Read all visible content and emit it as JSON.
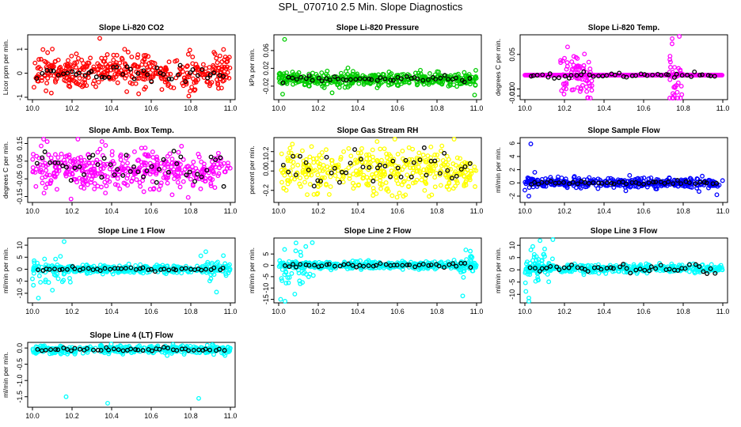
{
  "figure": {
    "title": "SPL_070710  2.5 Min. Slope Diagnostics"
  },
  "chart_data": [
    {
      "type": "scatter",
      "title": "Slope Li-820 CO2",
      "ylabel": "Licor ppm per min.",
      "xlim": [
        10.0,
        11.0
      ],
      "ylim": [
        -1.0,
        1.5
      ],
      "xticks": [
        "10.0",
        "10.2",
        "10.4",
        "10.6",
        "10.8",
        "11.0"
      ],
      "yticks": [
        "-1",
        "0",
        "1"
      ],
      "ytick_values": [
        -1,
        0,
        1
      ],
      "colors": {
        "points": "#ff0000",
        "highlight": "#000000"
      },
      "series": [
        {
          "kind": "scatter",
          "center": 0.05,
          "spread": 0.35,
          "n": 420,
          "outliers": [
            [
              10.34,
              1.45
            ],
            [
              10.79,
              -0.95
            ]
          ]
        },
        {
          "kind": "highlight",
          "center": 0.02,
          "spread": 0.2,
          "n": 45
        }
      ]
    },
    {
      "type": "scatter",
      "title": "Slope Li-820 Pressure",
      "ylabel": "kPa per min.",
      "xlim": [
        10.0,
        11.0
      ],
      "ylim": [
        -0.045,
        0.09
      ],
      "xticks": [
        "10.0",
        "10.2",
        "10.4",
        "10.6",
        "10.8",
        "11.0"
      ],
      "yticks": [
        "-0.02",
        "0.02",
        "0.06"
      ],
      "ytick_values": [
        -0.02,
        0.02,
        0.06
      ],
      "colors": {
        "points": "#00cc00",
        "highlight": "#000000"
      },
      "series": [
        {
          "kind": "scatter",
          "center": -0.005,
          "spread": 0.007,
          "n": 420,
          "outliers": [
            [
              10.03,
              0.085
            ],
            [
              10.02,
              -0.038
            ],
            [
              10.99,
              -0.04
            ],
            [
              10.04,
              0.01
            ],
            [
              10.27,
              -0.035
            ]
          ]
        },
        {
          "kind": "highlight",
          "center": -0.004,
          "spread": 0.004,
          "n": 45
        }
      ]
    },
    {
      "type": "scatter",
      "title": "Slope Li-820 Temp.",
      "ylabel": "degrees C per min.",
      "xlim": [
        10.0,
        11.0
      ],
      "ylim": [
        -0.012,
        0.075
      ],
      "xticks": [
        "10.0",
        "10.2",
        "10.4",
        "10.6",
        "10.8",
        "11.0"
      ],
      "yticks": [
        "-0.01",
        "0.00",
        "0.05"
      ],
      "ytick_values": [
        -0.01,
        0.0,
        0.05
      ],
      "colors": {
        "points": "#ff00ff",
        "highlight": "#000000"
      },
      "series": [
        {
          "kind": "flat",
          "value": 0.02,
          "n": 300
        },
        {
          "kind": "burst",
          "range": [
            10.18,
            10.34
          ],
          "center": 0.02,
          "spread": 0.022,
          "n": 70
        },
        {
          "kind": "burst",
          "range": [
            10.73,
            10.8
          ],
          "center": 0.02,
          "spread": 0.025,
          "n": 40
        },
        {
          "kind": "highlight",
          "center": 0.02,
          "spread": 0.002,
          "n": 45
        }
      ]
    },
    {
      "type": "scatter",
      "title": "Slope Amb. Box Temp.",
      "ylabel": "degrees C per min.",
      "xlim": [
        10.0,
        11.0
      ],
      "ylim": [
        -0.17,
        0.17
      ],
      "xticks": [
        "10.0",
        "10.2",
        "10.4",
        "10.6",
        "10.8",
        "11.0"
      ],
      "yticks": [
        "-0.15",
        "-0.05",
        "0.05",
        "0.15"
      ],
      "ytick_values": [
        -0.15,
        -0.05,
        0.05,
        0.15
      ],
      "colors": {
        "points": "#ff00ff",
        "highlight": "#000000"
      },
      "series": [
        {
          "kind": "scatter",
          "center": 0.0,
          "spread": 0.06,
          "n": 420,
          "outliers": []
        },
        {
          "kind": "highlight",
          "center": 0.0,
          "spread": 0.05,
          "n": 45
        }
      ]
    },
    {
      "type": "scatter",
      "title": "Slope Gas Stream RH",
      "ylabel": "percent per min.",
      "xlim": [
        10.0,
        11.0
      ],
      "ylim": [
        -0.3,
        0.32
      ],
      "xticks": [
        "10.0",
        "10.2",
        "10.4",
        "10.6",
        "10.8",
        "11.0"
      ],
      "yticks": [
        "-0.2",
        "0.0",
        "0.1",
        "0.2"
      ],
      "ytick_values": [
        -0.2,
        0.0,
        0.1,
        0.2
      ],
      "colors": {
        "points": "#ffff00",
        "highlight": "#000000"
      },
      "series": [
        {
          "kind": "scatter",
          "center": 0.0,
          "spread": 0.11,
          "n": 420,
          "outliers": []
        },
        {
          "kind": "highlight",
          "center": 0.02,
          "spread": 0.09,
          "n": 45
        }
      ]
    },
    {
      "type": "scatter",
      "title": "Slope Sample Flow",
      "ylabel": "ml/min per min.",
      "xlim": [
        10.0,
        11.0
      ],
      "ylim": [
        -2.6,
        6.5
      ],
      "xticks": [
        "10.0",
        "10.2",
        "10.4",
        "10.6",
        "10.8",
        "11.0"
      ],
      "yticks": [
        "-2",
        "0",
        "2",
        "4",
        "6"
      ],
      "ytick_values": [
        -2,
        0,
        2,
        4,
        6
      ],
      "colors": {
        "points": "#0000ff",
        "highlight": "#000000"
      },
      "series": [
        {
          "kind": "scatter",
          "center": 0.0,
          "spread": 0.35,
          "n": 400,
          "outliers": [
            [
              10.03,
              5.9
            ],
            [
              10.05,
              1.6
            ],
            [
              10.0,
              -1.1
            ],
            [
              10.02,
              -2.0
            ],
            [
              10.97,
              -1.8
            ],
            [
              10.88,
              -1.3
            ],
            [
              10.51,
              -1.2
            ]
          ]
        },
        {
          "kind": "highlight",
          "center": 0.0,
          "spread": 0.15,
          "n": 45
        }
      ]
    },
    {
      "type": "scatter",
      "title": "Slope Line 1 Flow",
      "ylabel": "ml/min per min.",
      "xlim": [
        10.0,
        11.0
      ],
      "ylim": [
        -13,
        12
      ],
      "xticks": [
        "10.0",
        "10.2",
        "10.4",
        "10.6",
        "10.8",
        "11.0"
      ],
      "yticks": [
        "-10",
        "-5",
        "0",
        "5",
        "10"
      ],
      "ytick_values": [
        -10,
        -5,
        0,
        5,
        10
      ],
      "colors": {
        "points": "#00ffff",
        "highlight": "#000000"
      },
      "series": [
        {
          "kind": "scatter",
          "center": 0.0,
          "spread": 0.8,
          "n": 380,
          "outliers": []
        },
        {
          "kind": "burst",
          "range": [
            10.0,
            10.2
          ],
          "center": 0.0,
          "spread": 4.0,
          "n": 30
        },
        {
          "kind": "burst",
          "range": [
            10.85,
            10.98
          ],
          "center": 0.0,
          "spread": 3.5,
          "n": 25
        },
        {
          "kind": "points",
          "pts": [
            [
              10.03,
              -12.0
            ],
            [
              10.16,
              11.5
            ],
            [
              10.93,
              -9.5
            ],
            [
              10.0,
              -4.0
            ]
          ]
        },
        {
          "kind": "highlight",
          "center": 0.0,
          "spread": 0.3,
          "n": 45
        }
      ]
    },
    {
      "type": "scatter",
      "title": "Slope Line 2 Flow",
      "ylabel": "ml/min per min.",
      "xlim": [
        10.0,
        11.0
      ],
      "ylim": [
        -15.5,
        11
      ],
      "xticks": [
        "10.0",
        "10.2",
        "10.4",
        "10.6",
        "10.8",
        "11.0"
      ],
      "yticks": [
        "-15",
        "-10",
        "-5",
        "0",
        "5"
      ],
      "ytick_values": [
        -15,
        -10,
        -5,
        0,
        5
      ],
      "colors": {
        "points": "#00ffff",
        "highlight": "#000000"
      },
      "series": [
        {
          "kind": "scatter",
          "center": 0.0,
          "spread": 0.8,
          "n": 380,
          "outliers": []
        },
        {
          "kind": "burst",
          "range": [
            10.0,
            10.18
          ],
          "center": -1.0,
          "spread": 5.0,
          "n": 35
        },
        {
          "kind": "burst",
          "range": [
            10.88,
            10.99
          ],
          "center": 0.0,
          "spread": 3.5,
          "n": 20
        },
        {
          "kind": "points",
          "pts": [
            [
              10.01,
              -15.0
            ],
            [
              10.17,
              10.0
            ],
            [
              10.93,
              -13.5
            ],
            [
              10.03,
              7.0
            ]
          ]
        },
        {
          "kind": "highlight",
          "center": 0.0,
          "spread": 0.5,
          "n": 45
        }
      ]
    },
    {
      "type": "scatter",
      "title": "Slope Line 3 Flow",
      "ylabel": "ml/min per min.",
      "xlim": [
        10.0,
        11.0
      ],
      "ylim": [
        -12.5,
        12
      ],
      "xticks": [
        "10.0",
        "10.2",
        "10.4",
        "10.6",
        "10.8",
        "11.0"
      ],
      "yticks": [
        "-10",
        "-5",
        "0",
        "5",
        "10"
      ],
      "ytick_values": [
        -10,
        -5,
        0,
        5,
        10
      ],
      "colors": {
        "points": "#00ffff",
        "highlight": "#000000"
      },
      "series": [
        {
          "kind": "scatter",
          "center": 0.5,
          "spread": 0.8,
          "n": 380,
          "outliers": []
        },
        {
          "kind": "burst",
          "range": [
            10.0,
            10.15
          ],
          "center": 1.0,
          "spread": 5.0,
          "n": 45
        },
        {
          "kind": "points",
          "pts": [
            [
              10.02,
              -11.5
            ],
            [
              10.04,
              9.5
            ],
            [
              10.1,
              8.5
            ]
          ]
        },
        {
          "kind": "highlight",
          "center": 0.5,
          "spread": 0.8,
          "n": 45
        }
      ]
    },
    {
      "type": "scatter",
      "title": "Slope Line 4 (LT) Flow",
      "ylabel": "ml/min per min.",
      "xlim": [
        10.0,
        11.0
      ],
      "ylim": [
        -1.75,
        0.1
      ],
      "xticks": [
        "10.0",
        "10.2",
        "10.4",
        "10.6",
        "10.8",
        "11.0"
      ],
      "yticks": [
        "-1.5",
        "-1.0",
        "-0.5",
        "0.0"
      ],
      "ytick_values": [
        -1.5,
        -1.0,
        -0.5,
        0.0
      ],
      "colors": {
        "points": "#00ffff",
        "highlight": "#000000"
      },
      "series": [
        {
          "kind": "scatter",
          "center": -0.05,
          "spread": 0.06,
          "n": 420,
          "outliers": []
        },
        {
          "kind": "points",
          "pts": [
            [
              10.17,
              -1.5
            ],
            [
              10.38,
              -1.7
            ],
            [
              10.84,
              -1.55
            ]
          ]
        },
        {
          "kind": "highlight",
          "center": -0.05,
          "spread": 0.03,
          "n": 45
        }
      ]
    }
  ]
}
